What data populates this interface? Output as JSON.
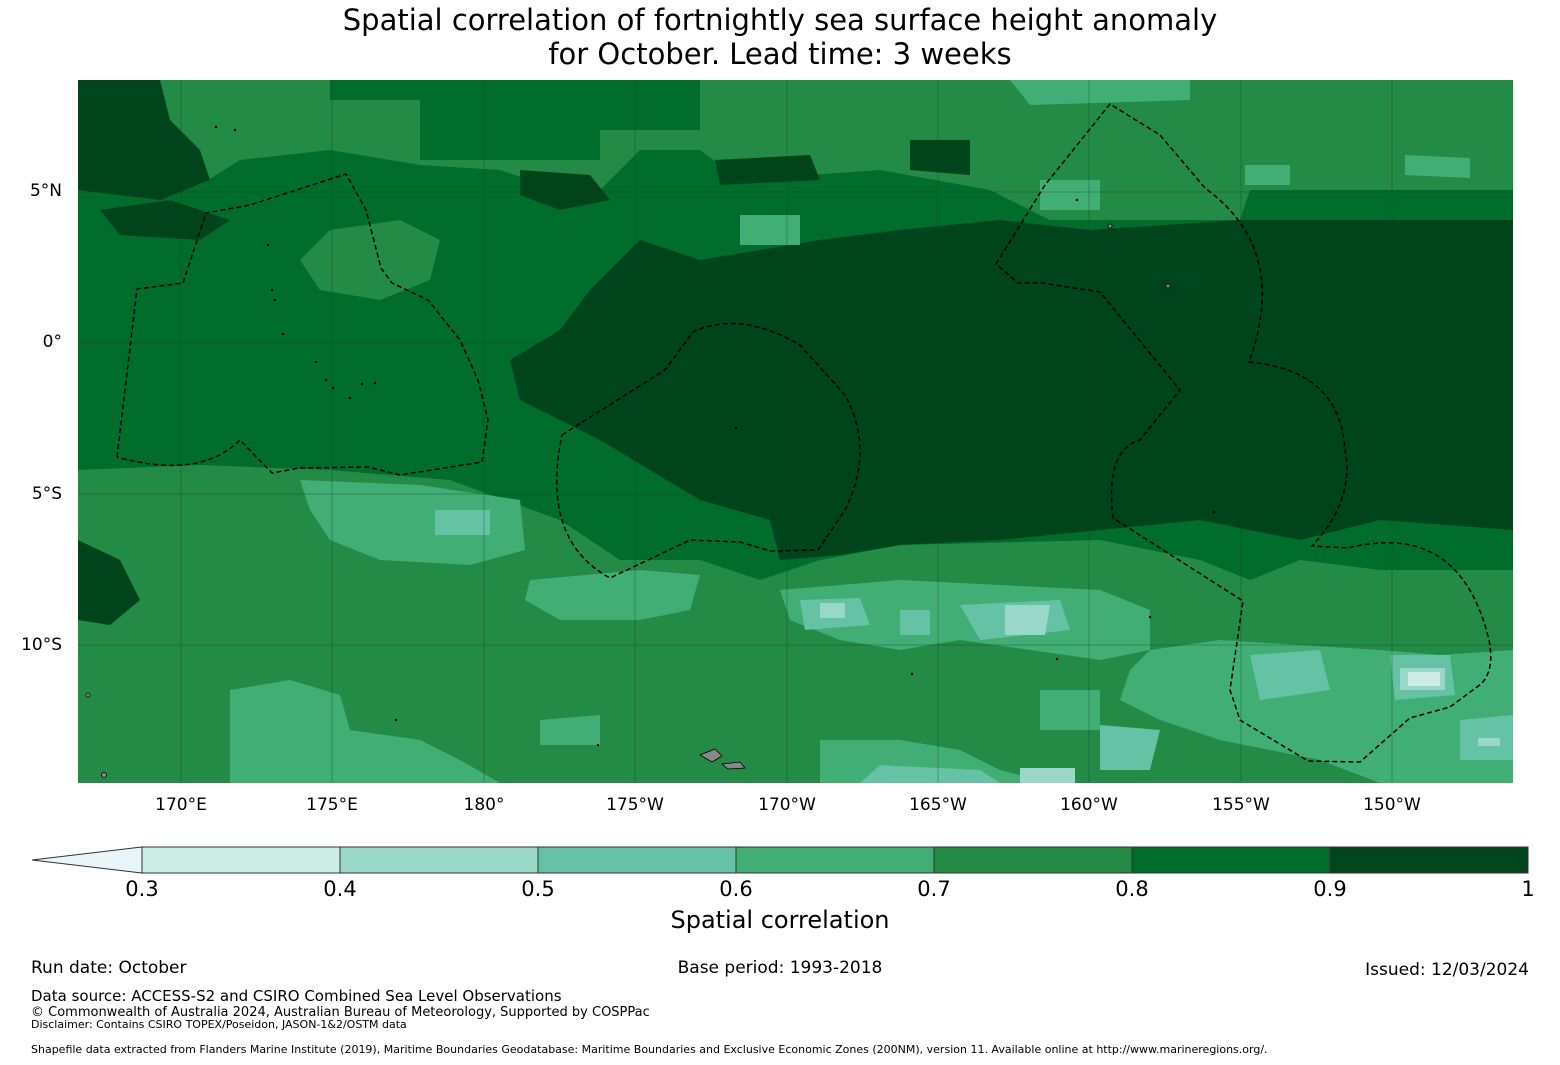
{
  "title": {
    "line1": "Spatial correlation of fortnightly sea surface height anomaly",
    "line2": "for October. Lead time: 3 weeks"
  },
  "axes": {
    "lat_labels": [
      "5°N",
      "0°",
      "5°S",
      "10°S"
    ],
    "lon_labels": [
      "170°E",
      "175°E",
      "180°",
      "175°W",
      "170°W",
      "165°W",
      "160°W",
      "155°W",
      "150°W"
    ]
  },
  "colorbar": {
    "ticks": [
      "0.3",
      "0.4",
      "0.5",
      "0.6",
      "0.7",
      "0.8",
      "0.9",
      "1"
    ],
    "label": "Spatial correlation",
    "colors": [
      "#e8f5f9",
      "#ccede6",
      "#99d8c9",
      "#66c2a4",
      "#41ae76",
      "#238b45",
      "#006d2c",
      "#00441b"
    ]
  },
  "footer": {
    "run_date": "Run date: October",
    "base_period": "Base period: 1993-2018",
    "issued": "Issued: 12/03/2024",
    "data_source": "Data source: ACCESS-S2 and CSIRO Combined Sea Level Observations",
    "copyright": "© Commonwealth of Australia 2024, Australian Bureau of Meteorology, Supported by COSPPac",
    "disclaimer": "Disclaimer: Contains CSIRO TOPEX/Poseidon, JASON-1&2/OSTM data",
    "shapefile": "Shapefile data extracted from Flanders Marine Institute (2019), Maritime Boundaries Geodatabase: Maritime Boundaries and Exclusive Economic Zones (200NM), version 11. Available online at http://www.marineregions.org/."
  }
}
